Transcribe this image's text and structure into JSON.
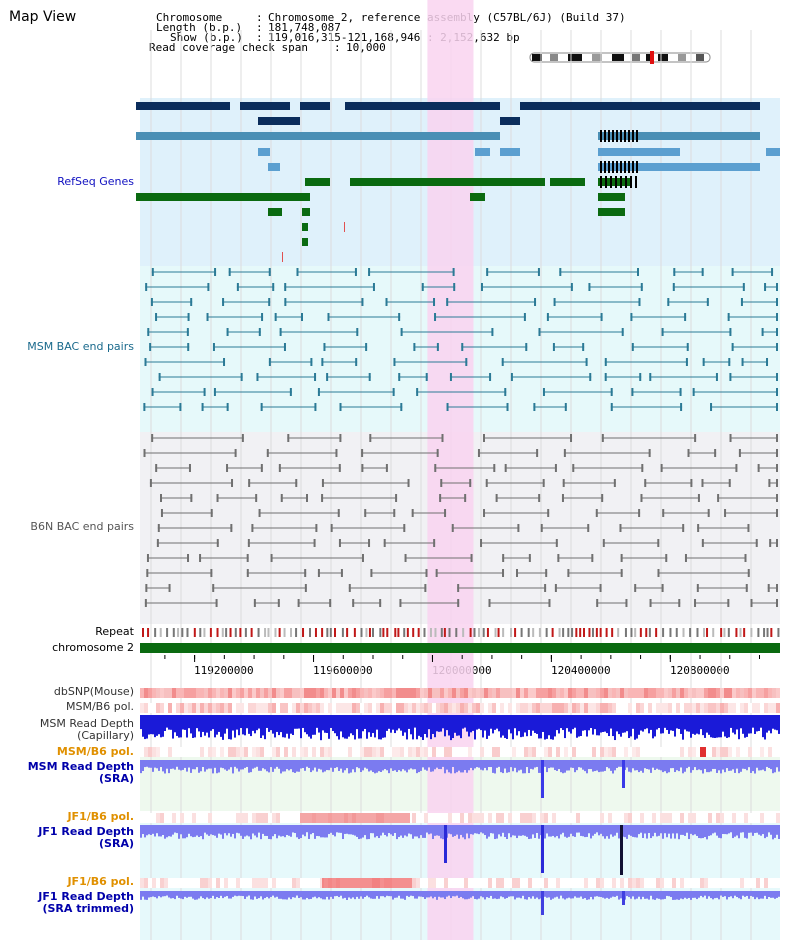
{
  "title": "Map View",
  "info": {
    "chromosome_key": "Chromosome",
    "chromosome_val": "Chromosome 2, reference assembly (C57BL/6J) (Build 37)",
    "length_key": "Length (b.p.)",
    "length_val": "181,748,087",
    "show_key": "Show (b.p.)",
    "show_val": "119,016,315-121,168,946 : 2,152,632 bp",
    "coverage_key": "Read coverage check span",
    "coverage_val": "10,000"
  },
  "tracks": {
    "refseq": "RefSeq Genes",
    "msm_bac": "MSM BAC end pairs",
    "b6n_bac": "B6N BAC end pairs",
    "repeat": "Repeat",
    "chromosome": "chromosome 2",
    "dbsnp": "dbSNP(Mouse)",
    "msm_b6_pol_1": "MSM/B6 pol.",
    "msm_read_depth_cap_1": "MSM Read Depth",
    "msm_read_depth_cap_2": "(Capillary)",
    "msm_b6_pol_2": "MSM/B6 pol.",
    "msm_read_depth_sra_1": "MSM Read Depth",
    "msm_read_depth_sra_2": "(SRA)",
    "jf1_b6_pol_1": "JF1/B6 pol.",
    "jf1_read_depth_sra_1": "JF1 Read Depth",
    "jf1_read_depth_sra_2": "(SRA)",
    "jf1_b6_pol_2": "JF1/B6 pol.",
    "jf1_read_depth_trim_1": "JF1 Read Depth",
    "jf1_read_depth_trim_2": "(SRA trimmed)"
  },
  "axis": {
    "ticks": [
      "119200000",
      "119600000",
      "120000000",
      "120400000",
      "120800000"
    ],
    "tick_values": [
      119200000,
      119600000,
      120000000,
      120400000,
      120800000
    ],
    "start": 119016315,
    "end": 121168946
  },
  "highlight": {
    "start": 119983000,
    "end": 120138000,
    "color": "#f9d4f0"
  },
  "colors": {
    "refseq_dark": "#0b2d5c",
    "refseq_mid": "#4a8fb5",
    "refseq_light": "#5b9fd0",
    "refseq_green": "#0a6a10",
    "refseq_bg": "#dff1fb",
    "msm_bac": "#2b7a96",
    "msm_bg": "#e6f9fa",
    "b6n_bac": "#707070",
    "b6n_bg": "#f1f1f4",
    "chromosome_bar": "#0a6a10",
    "depth_blue": "#1a1ad8",
    "depth_sra": "#7b7bf0",
    "pol_label": "#e09000",
    "depth_label": "#0000aa",
    "msm_label": "#1a6a8c"
  }
}
